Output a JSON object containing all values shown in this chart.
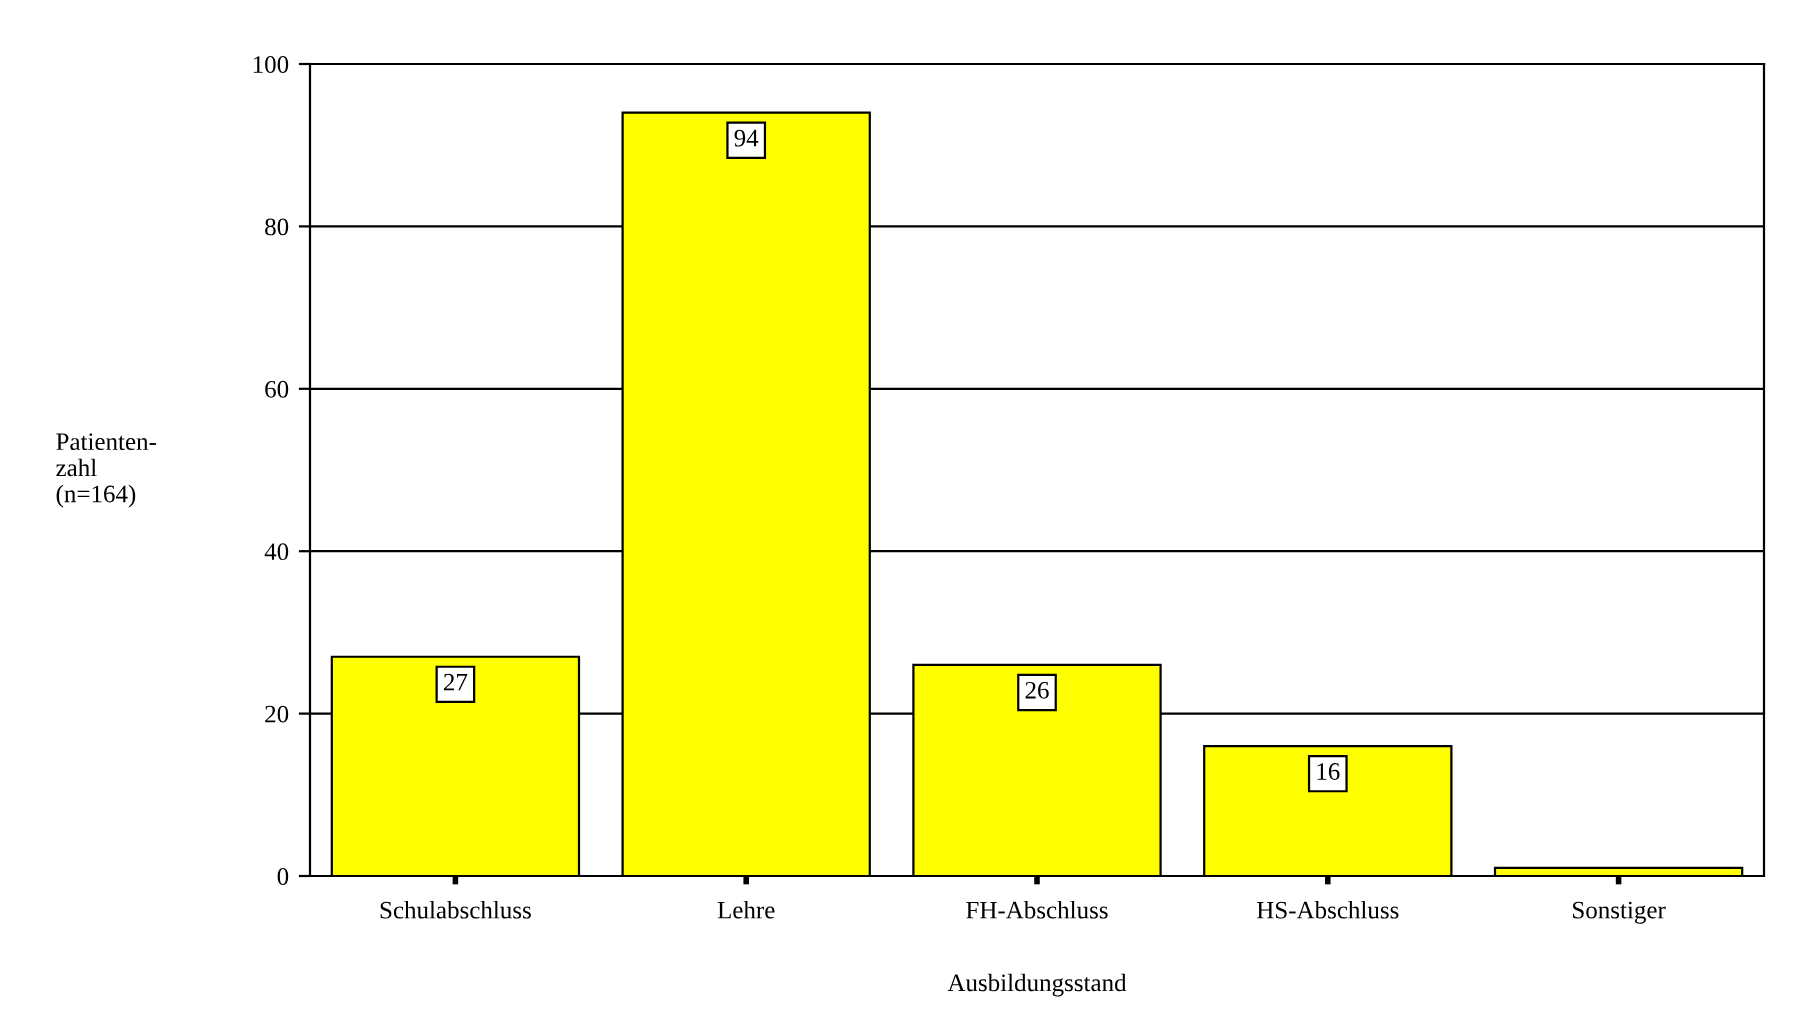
{
  "chart_data": {
    "type": "bar",
    "xlabel": "Ausbildungsstand",
    "ylabel": "Patienten-\nzahl\n(n=164)",
    "categories": [
      "Schulabschluss",
      "Lehre",
      "FH-Abschluss",
      "HS-Abschluss",
      "Sonstiger"
    ],
    "values": [
      27,
      94,
      26,
      16,
      1
    ],
    "value_labels": [
      "27",
      "94",
      "26",
      "16",
      null
    ],
    "color": "#ffff00",
    "ylim": [
      0,
      100
    ],
    "yticks": [
      0,
      20,
      40,
      60,
      80,
      100
    ],
    "grid": "y",
    "legend": false
  }
}
